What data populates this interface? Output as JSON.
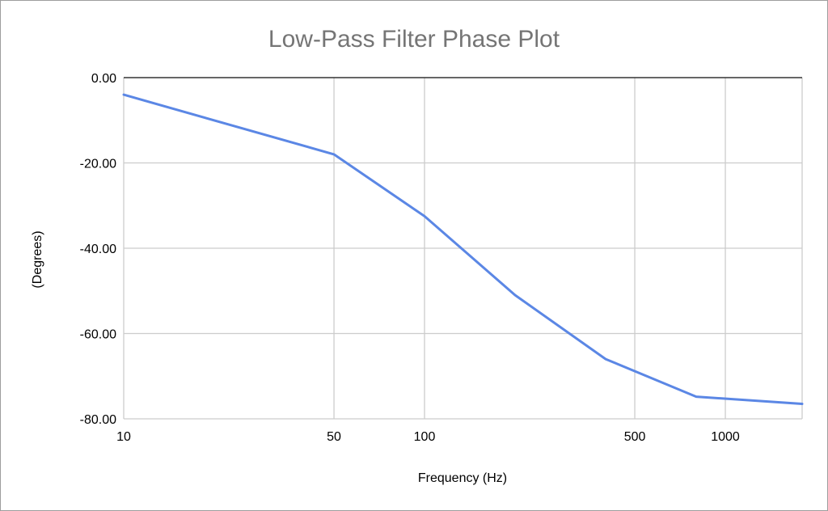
{
  "chart_data": {
    "type": "line",
    "title": "Low-Pass Filter Phase Plot",
    "xlabel": "Frequency (Hz)",
    "ylabel": "(Degrees)",
    "x_scale": "log",
    "xlim": [
      10,
      1800
    ],
    "ylim": [
      -80,
      0
    ],
    "x_ticks": [
      {
        "value": 10,
        "label": "10"
      },
      {
        "value": 50,
        "label": "50"
      },
      {
        "value": 100,
        "label": "100"
      },
      {
        "value": 500,
        "label": "500"
      },
      {
        "value": 1000,
        "label": "1000"
      }
    ],
    "y_ticks": [
      {
        "value": 0,
        "label": "0.00"
      },
      {
        "value": -20,
        "label": "-20.00"
      },
      {
        "value": -40,
        "label": "-40.00"
      },
      {
        "value": -60,
        "label": "-60.00"
      },
      {
        "value": -80,
        "label": "-80.00"
      }
    ],
    "grid": true,
    "legend": "none",
    "series": [
      {
        "color": "#5b87e5",
        "x": [
          10,
          50,
          100,
          200,
          400,
          800,
          1800
        ],
        "y": [
          -4,
          -18,
          -32.5,
          -51,
          -66,
          -74.8,
          -76.5
        ]
      }
    ]
  }
}
